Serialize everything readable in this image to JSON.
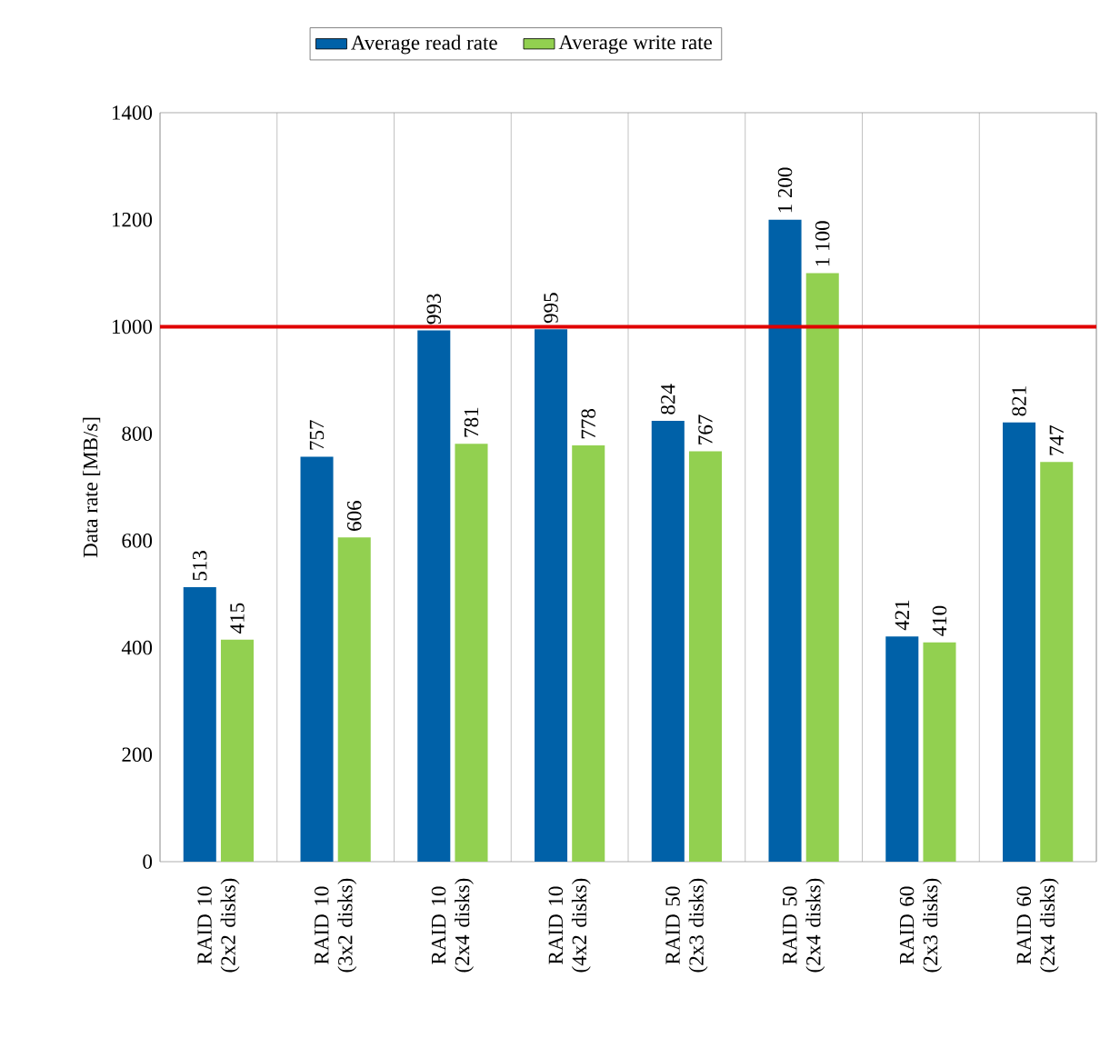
{
  "chart_data": {
    "type": "bar",
    "ylabel": "Data rate [MB/s]",
    "categories": [
      "RAID 10 (2x2 disks)",
      "RAID 10 (3x2 disks)",
      "RAID 10 (2x4 disks)",
      "RAID 10 (4x2 disks)",
      "RAID 50 (2x3 disks)",
      "RAID 50 (2x4 disks)",
      "RAID 60 (2x3 disks)",
      "RAID 60 (2x4 disks)"
    ],
    "series": [
      {
        "name": "Average read rate",
        "color": "#0061a8",
        "values": [
          513,
          757,
          993,
          995,
          824,
          1200,
          421,
          821
        ],
        "value_labels": [
          "513",
          "757",
          "993",
          "995",
          "824",
          "1 200",
          "421",
          "821"
        ]
      },
      {
        "name": "Average write rate",
        "color": "#92d050",
        "values": [
          415,
          606,
          781,
          778,
          767,
          1100,
          410,
          747
        ],
        "value_labels": [
          "415",
          "606",
          "781",
          "778",
          "767",
          "1 100",
          "410",
          "747"
        ]
      }
    ],
    "ylim": [
      0,
      1400
    ],
    "yticks": [
      0,
      200,
      400,
      600,
      800,
      1000,
      1200,
      1400
    ],
    "ref_lines": [
      {
        "axis": "y",
        "value": 1000,
        "color": "#e00000"
      }
    ],
    "grid": "x",
    "legend": "top"
  }
}
